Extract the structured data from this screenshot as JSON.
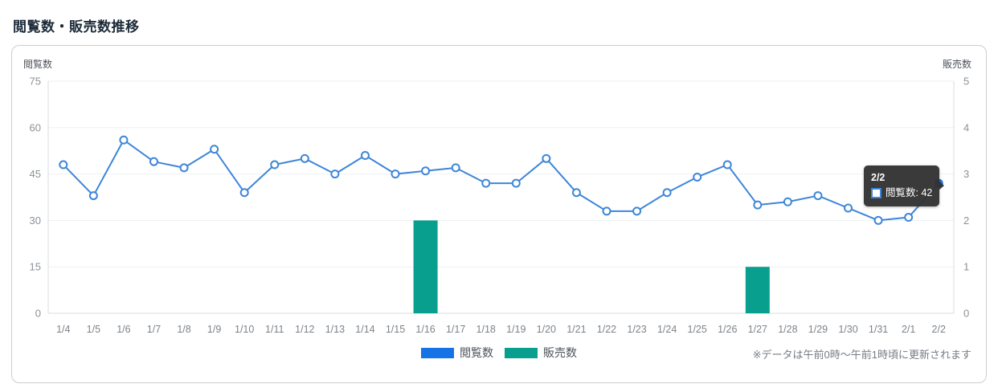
{
  "page": {
    "title": "閲覧数・販売数推移"
  },
  "chart_data": {
    "type": "line+bar",
    "categories": [
      "1/4",
      "1/5",
      "1/6",
      "1/7",
      "1/8",
      "1/9",
      "1/10",
      "1/11",
      "1/12",
      "1/13",
      "1/14",
      "1/15",
      "1/16",
      "1/17",
      "1/18",
      "1/19",
      "1/20",
      "1/21",
      "1/22",
      "1/23",
      "1/24",
      "1/25",
      "1/26",
      "1/27",
      "1/28",
      "1/29",
      "1/30",
      "1/31",
      "2/1",
      "2/2"
    ],
    "series": [
      {
        "name": "閲覧数",
        "type": "line",
        "axis": "left",
        "line_color": "#3e86d8",
        "marker_fill": "#ffffff",
        "point_color": "#1673e6",
        "values": [
          48,
          38,
          56,
          49,
          47,
          53,
          39,
          48,
          50,
          45,
          51,
          45,
          46,
          47,
          42,
          42,
          50,
          39,
          33,
          33,
          39,
          44,
          48,
          35,
          36,
          38,
          34,
          30,
          31,
          42
        ]
      },
      {
        "name": "販売数",
        "type": "bar",
        "axis": "right",
        "color": "#089f8e",
        "values": [
          0,
          0,
          0,
          0,
          0,
          0,
          0,
          0,
          0,
          0,
          0,
          0,
          2,
          0,
          0,
          0,
          0,
          0,
          0,
          0,
          0,
          0,
          0,
          1,
          0,
          0,
          0,
          0,
          0,
          0
        ]
      }
    ],
    "left_axis": {
      "label": "閲覧数",
      "ticks": [
        0,
        15,
        30,
        45,
        60,
        75
      ],
      "min": 0,
      "max": 75
    },
    "right_axis": {
      "label": "販売数",
      "ticks": [
        0,
        1,
        2,
        3,
        4,
        5
      ],
      "min": 0,
      "max": 5
    },
    "grid": true,
    "legend_position": "bottom-center"
  },
  "tooltip": {
    "date": "2/2",
    "series": "閲覧数",
    "value": "42",
    "text": "閲覧数: 42"
  },
  "legend": [
    {
      "label": "閲覧数",
      "color": "#1673e6"
    },
    {
      "label": "販売数",
      "color": "#089f8e"
    }
  ],
  "note": "※データは午前0時～午前1時頃に更新されます",
  "colors": {
    "title_text": "#1c2b39",
    "line_blue": "#3e86d8",
    "accent_blue": "#1673e6",
    "bar_teal": "#089f8e",
    "tick_text": "#8b9198",
    "x_label_text": "#7d838a",
    "gridline": "#eef0f2",
    "axis_line": "#d9dcdf",
    "card_border": "#cbcdd0",
    "tooltip_bg": "#323232"
  }
}
